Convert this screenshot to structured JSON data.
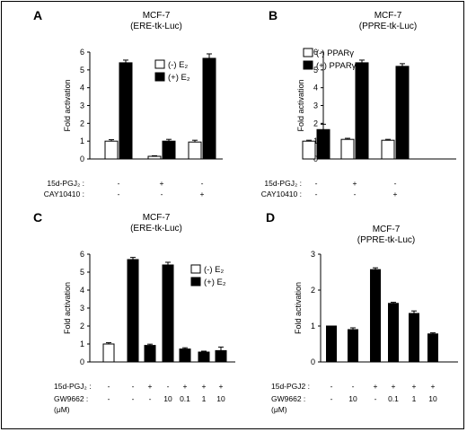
{
  "chart_data": [
    {
      "type": "bar",
      "panel": "A",
      "title": "MCF-7",
      "subtitle": "(ERE-tk-Luc)",
      "ylabel": "Fold activation",
      "ylim": [
        0,
        6
      ],
      "yticks": [
        "0",
        "1",
        "2",
        "3",
        "4",
        "5",
        "6"
      ],
      "legend": {
        "placement": "top-right",
        "entries": [
          "(-) E₂",
          "(+) E₂"
        ]
      },
      "groups": 3,
      "series": [
        {
          "name": "(-) E₂",
          "color": "#ffffff",
          "values": [
            1.0,
            0.15,
            0.95
          ],
          "errors": [
            0.08,
            0.03,
            0.1
          ]
        },
        {
          "name": "(+) E₂",
          "color": "#000000",
          "values": [
            5.4,
            1.0,
            5.65
          ],
          "errors": [
            0.15,
            0.1,
            0.25
          ]
        }
      ],
      "conditions": [
        {
          "label": "15d-PGJ₂",
          "values": [
            "-",
            "+",
            "-"
          ]
        },
        {
          "label": "CAY10410",
          "values": [
            "-",
            "-",
            "+"
          ]
        }
      ]
    },
    {
      "type": "bar",
      "panel": "B",
      "title": "MCF-7",
      "subtitle": "(PPRE-tk-Luc)",
      "ylabel": "Fold activation",
      "ylim": [
        0,
        6
      ],
      "yticks": [
        "0",
        "1",
        "2",
        "3",
        "4",
        "5",
        "6"
      ],
      "legend": {
        "placement": "top-left",
        "entries": [
          "(-) PPARγ",
          "(+) PPARγ"
        ]
      },
      "groups": 3,
      "series": [
        {
          "name": "(-) PPARγ",
          "color": "#ffffff",
          "values": [
            1.0,
            1.1,
            1.05
          ],
          "errors": [
            0.05,
            0.06,
            0.05
          ]
        },
        {
          "name": "(+) PPARγ",
          "color": "#000000",
          "values": [
            1.65,
            5.4,
            5.2
          ],
          "errors": [
            0.3,
            0.15,
            0.15
          ]
        }
      ],
      "conditions": [
        {
          "label": "15d-PGJ₂",
          "values": [
            "-",
            "+",
            "-"
          ]
        },
        {
          "label": "CAY10410",
          "values": [
            "-",
            "-",
            "+"
          ]
        }
      ]
    },
    {
      "type": "bar",
      "panel": "C",
      "title": "MCF-7",
      "subtitle": "(ERE-tk-Luc)",
      "ylabel": "Fold activation",
      "ylim": [
        0,
        6
      ],
      "yticks": [
        "0",
        "1",
        "2",
        "3",
        "4",
        "5",
        "6"
      ],
      "legend": {
        "placement": "top-right",
        "entries": [
          "(-) E₂",
          "(+) E₂"
        ]
      },
      "bars": [
        {
          "value": 1.0,
          "error": 0.07,
          "color": "#ffffff"
        },
        {
          "value": 5.7,
          "error": 0.12,
          "color": "#000000"
        },
        {
          "value": 0.92,
          "error": 0.07,
          "color": "#000000"
        },
        {
          "value": 5.4,
          "error": 0.15,
          "color": "#000000"
        },
        {
          "value": 0.72,
          "error": 0.07,
          "color": "#000000"
        },
        {
          "value": 0.55,
          "error": 0.05,
          "color": "#000000"
        },
        {
          "value": 0.63,
          "error": 0.2,
          "color": "#000000"
        }
      ],
      "conditions": [
        {
          "label": "15d-PGJ₂",
          "values": [
            "-",
            "-",
            "+",
            "-",
            "+",
            "+",
            "+"
          ]
        },
        {
          "label": "GW9662",
          "values": [
            "-",
            "-",
            "-",
            "10",
            "0.1",
            "1",
            "10"
          ]
        },
        {
          "label": "(μM)",
          "values": []
        }
      ]
    },
    {
      "type": "bar",
      "panel": "D",
      "title": "MCF-7",
      "subtitle": "(PPRE-tk-Luc)",
      "ylabel": "Fold activation",
      "ylim": [
        0,
        3
      ],
      "yticks": [
        "0",
        "1",
        "2",
        "3"
      ],
      "bars": [
        {
          "value": 1.0,
          "error": 0.0,
          "color": "#000000"
        },
        {
          "value": 0.9,
          "error": 0.05,
          "color": "#000000"
        },
        {
          "value": 2.57,
          "error": 0.05,
          "color": "#000000"
        },
        {
          "value": 1.63,
          "error": 0.03,
          "color": "#000000"
        },
        {
          "value": 1.35,
          "error": 0.07,
          "color": "#000000"
        },
        {
          "value": 0.78,
          "error": 0.03,
          "color": "#000000"
        }
      ],
      "conditions": [
        {
          "label": "15d-PGJ2",
          "values": [
            "-",
            "-",
            "+",
            "+",
            "+",
            "+"
          ]
        },
        {
          "label": "GW9662",
          "values": [
            "-",
            "10",
            "-",
            "0.1",
            "1",
            "10"
          ]
        },
        {
          "label": "(μM)",
          "values": []
        }
      ]
    }
  ]
}
